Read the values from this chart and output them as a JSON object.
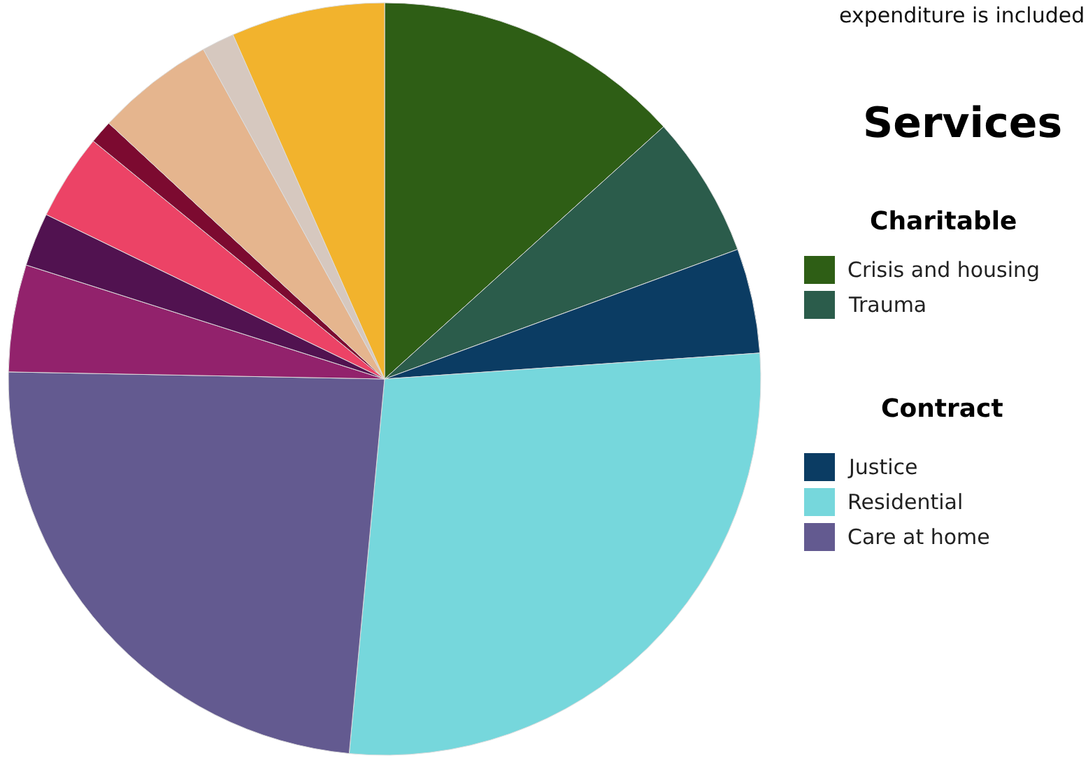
{
  "chart_data": {
    "type": "pie",
    "legend_title": "Services",
    "legend": "right",
    "annotations": [
      "expenditure is included",
      "Charitable",
      "Contract"
    ],
    "categories": [
      "Crisis and housing",
      "Trauma",
      "Justice",
      "Residential",
      "Care at home",
      null,
      null,
      null,
      null,
      null,
      null,
      null
    ],
    "values": [
      13.3,
      6.1,
      4.5,
      27.6,
      23.8,
      4.6,
      2.3,
      3.7,
      1.0,
      5.1,
      1.4,
      6.6
    ],
    "colors": [
      "#2e5e15",
      "#2b5c4b",
      "#0b3c63",
      "#76d7dc",
      "#635a90",
      "#92226c",
      "#511250",
      "#ec4366",
      "#7c0a30",
      "#e5b58e",
      "#d6c8bf",
      "#f2b32d"
    ]
  }
}
